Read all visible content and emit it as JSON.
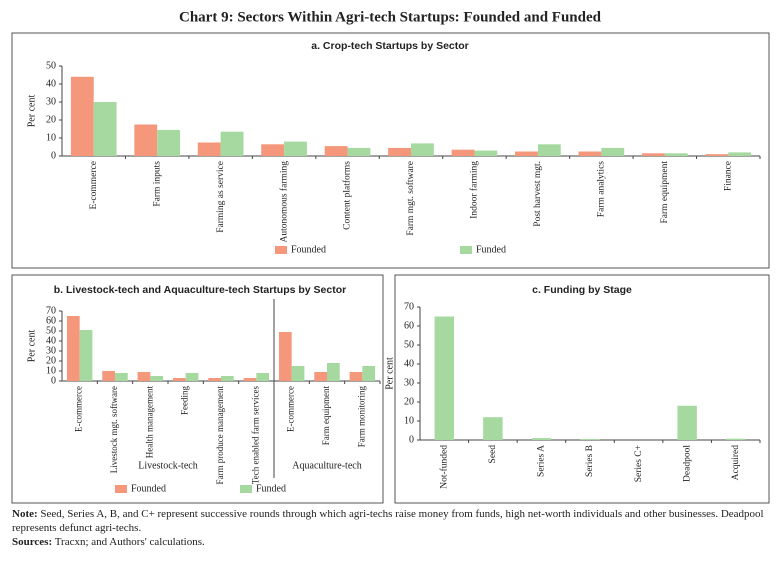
{
  "title": "Chart 9: Sectors Within Agri-tech Startups: Founded and Funded",
  "chart_data": [
    {
      "type": "bar",
      "title": "a. Crop-tech Startups by Sector",
      "y_label": "Per cent",
      "categories": [
        "E-commerce",
        "Farm inputs",
        "Farming as service",
        "Autonomous farming",
        "Content platforms",
        "Farm mgt. software",
        "Indoor farming",
        "Post harvest mgt.",
        "Farm analytics",
        "Farm equipment",
        "Finance"
      ],
      "series": [
        {
          "name": "Founded",
          "color": "#f4977a",
          "values": [
            44,
            17.5,
            7.5,
            6.5,
            5.5,
            4.5,
            3.5,
            2.5,
            2.5,
            1.5,
            1
          ]
        },
        {
          "name": "Funded",
          "color": "#a6d9a0",
          "values": [
            30,
            14.5,
            13.5,
            8,
            4.5,
            7,
            3,
            6.5,
            4.5,
            1.5,
            2
          ]
        }
      ],
      "ylim": [
        0,
        50
      ],
      "yticks": [
        0,
        10,
        20,
        30,
        40,
        50
      ]
    },
    {
      "type": "bar",
      "title": "b. Livestock-tech and Aquaculture-tech Startups by Sector",
      "y_label": "Per cent",
      "categories": [
        "E-commerce",
        "Livestock mgt. software",
        "Health management",
        "Feeding",
        "Farm produce management",
        "Tech enabled farm services",
        "E-commerce",
        "Farm equipment",
        "Farm monitoring"
      ],
      "group_labels": [
        "Livestock-tech",
        "Aquaculture-tech"
      ],
      "series": [
        {
          "name": "Founded",
          "color": "#f4977a",
          "values": [
            65,
            10,
            9,
            3,
            3,
            3,
            49,
            9,
            9
          ]
        },
        {
          "name": "Funded",
          "color": "#a6d9a0",
          "values": [
            51,
            8,
            5,
            8,
            5,
            8,
            15,
            18,
            15
          ]
        }
      ],
      "ylim": [
        0,
        70
      ],
      "yticks": [
        0,
        10,
        20,
        30,
        40,
        50,
        60,
        70
      ]
    },
    {
      "type": "bar",
      "title": "c. Funding by Stage",
      "y_label": "Per cent",
      "categories": [
        "Not-funded",
        "Seed",
        "Series A",
        "Series B",
        "Series C+",
        "Deadpool",
        "Acquired"
      ],
      "values": [
        65,
        12,
        1,
        0.5,
        0,
        18,
        0.7
      ],
      "color": "#a6d9a0",
      "ylim": [
        0,
        70
      ],
      "yticks": [
        0,
        10,
        20,
        30,
        40,
        50,
        60,
        70
      ]
    }
  ],
  "note_label": "Note:",
  "note": "Seed, Series A, B, and C+ represent successive rounds through which agri-techs raise money from funds, high net-worth individuals and other businesses. Deadpool represents defunct agri-techs.",
  "sources_label": "Sources:",
  "sources": "Tracxn; and Authors' calculations."
}
